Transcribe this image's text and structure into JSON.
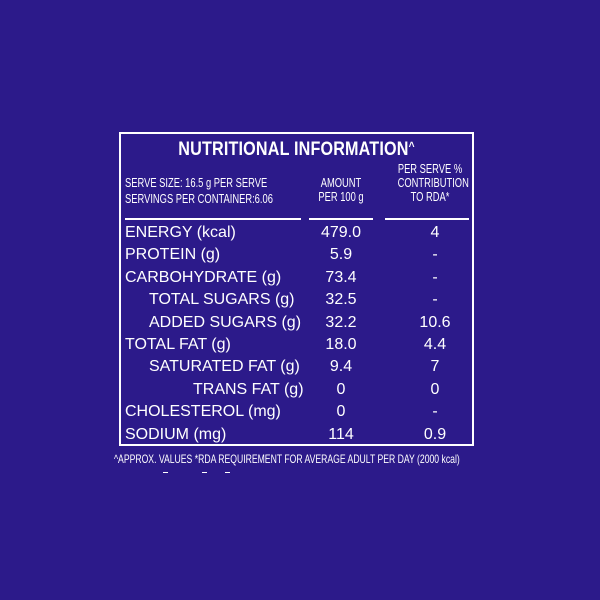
{
  "title": "NUTRITIONAL INFORMATION",
  "title_mark": "^",
  "serve_size": "SERVE SIZE: 16.5 g PER SERVE",
  "servings": "SERVINGS PER CONTAINER:6.06",
  "col_amount": [
    "AMOUNT",
    "PER 100 g"
  ],
  "col_rda": [
    "PER SERVE %",
    "CONTRIBUTION",
    "TO RDA*"
  ],
  "rows": [
    {
      "label": "ENERGY (kcal)",
      "amount": "479.0",
      "rda": "4"
    },
    {
      "label": "PROTEIN (g)",
      "amount": "5.9",
      "rda": "-"
    },
    {
      "label": "CARBOHYDRATE (g)",
      "amount": "73.4",
      "rda": "-"
    },
    {
      "label": "TOTAL SUGARS (g)",
      "amount": "32.5",
      "rda": "-"
    },
    {
      "label": "ADDED SUGARS (g)",
      "amount": "32.2",
      "rda": "10.6"
    },
    {
      "label": "TOTAL FAT (g)",
      "amount": "18.0",
      "rda": "4.4"
    },
    {
      "label": "SATURATED FAT (g)",
      "amount": "9.4",
      "rda": "7"
    },
    {
      "label": "TRANS FAT (g)",
      "amount": "0",
      "rda": "0"
    },
    {
      "label": "CHOLESTEROL (mg)",
      "amount": "0",
      "rda": "-"
    },
    {
      "label": "SODIUM (mg)",
      "amount": "114",
      "rda": "0.9"
    }
  ],
  "footnote": "^APPROX. VALUES *RDA REQUIREMENT FOR AVERAGE ADULT PER DAY (2000 kcal)",
  "colors": {
    "background": "#2c1a8a",
    "text": "#ffffff"
  }
}
